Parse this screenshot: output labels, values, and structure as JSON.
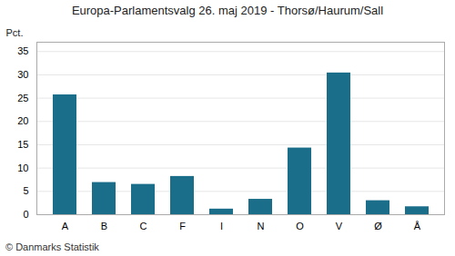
{
  "chart_data": {
    "type": "bar",
    "title": "Europa-Parlamentsvalg 26. maj 2019 - Thorsø/Haurum/Sall",
    "categories": [
      "A",
      "B",
      "C",
      "F",
      "I",
      "N",
      "O",
      "V",
      "Ø",
      "Å"
    ],
    "values": [
      25.7,
      6.9,
      6.5,
      8.2,
      1.2,
      3.3,
      14.3,
      30.4,
      3.0,
      1.7
    ],
    "color": "#1a6e8a",
    "ylabel": "Pct.",
    "ylim": [
      0,
      37
    ],
    "yticks": [
      0,
      5,
      10,
      15,
      20,
      25,
      30,
      35
    ],
    "grid": true,
    "caption": "© Danmarks Statistik"
  }
}
